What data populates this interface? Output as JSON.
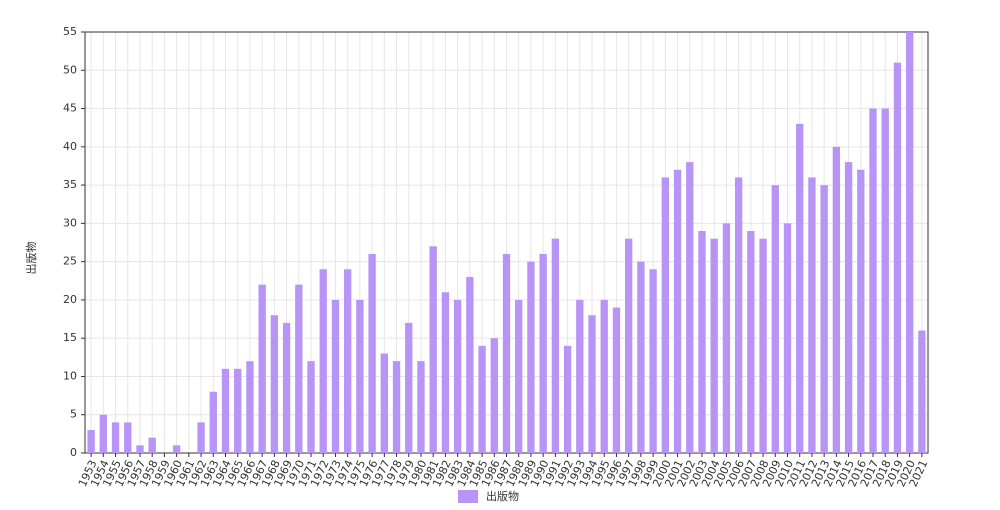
{
  "chart_data": {
    "type": "bar",
    "y_label": "出版物",
    "categories": [
      "1953",
      "1954",
      "1955",
      "1956",
      "1957",
      "1958",
      "1959",
      "1960",
      "1961",
      "1962",
      "1963",
      "1964",
      "1965",
      "1966",
      "1967",
      "1968",
      "1969",
      "1970",
      "1971",
      "1972",
      "1973",
      "1974",
      "1975",
      "1976",
      "1977",
      "1978",
      "1979",
      "1980",
      "1981",
      "1982",
      "1983",
      "1984",
      "1985",
      "1986",
      "1987",
      "1988",
      "1989",
      "1990",
      "1991",
      "1992",
      "1993",
      "1994",
      "1995",
      "1996",
      "1997",
      "1998",
      "1999",
      "2000",
      "2001",
      "2002",
      "2003",
      "2004",
      "2005",
      "2006",
      "2007",
      "2008",
      "2009",
      "2010",
      "2011",
      "2012",
      "2013",
      "2014",
      "2015",
      "2016",
      "2017",
      "2018",
      "2019",
      "2020",
      "2021"
    ],
    "series": [
      {
        "name": "出版物",
        "color": "#b794f6",
        "values": [
          3,
          5,
          4,
          4,
          1,
          2,
          0,
          1,
          0,
          4,
          8,
          11,
          11,
          12,
          22,
          18,
          17,
          22,
          12,
          24,
          20,
          24,
          20,
          26,
          13,
          12,
          17,
          12,
          27,
          21,
          20,
          23,
          14,
          15,
          26,
          20,
          25,
          26,
          28,
          14,
          20,
          18,
          20,
          19,
          28,
          25,
          24,
          36,
          37,
          38,
          29,
          28,
          30,
          36,
          29,
          28,
          35,
          30,
          43,
          36,
          35,
          40,
          38,
          37,
          45,
          45,
          51,
          55,
          16
        ]
      }
    ],
    "ylim": [
      0,
      55
    ],
    "yticks": [
      0,
      5,
      10,
      15,
      20,
      25,
      30,
      35,
      40,
      45,
      50,
      55
    ],
    "grid": true,
    "legend": "bottom"
  }
}
